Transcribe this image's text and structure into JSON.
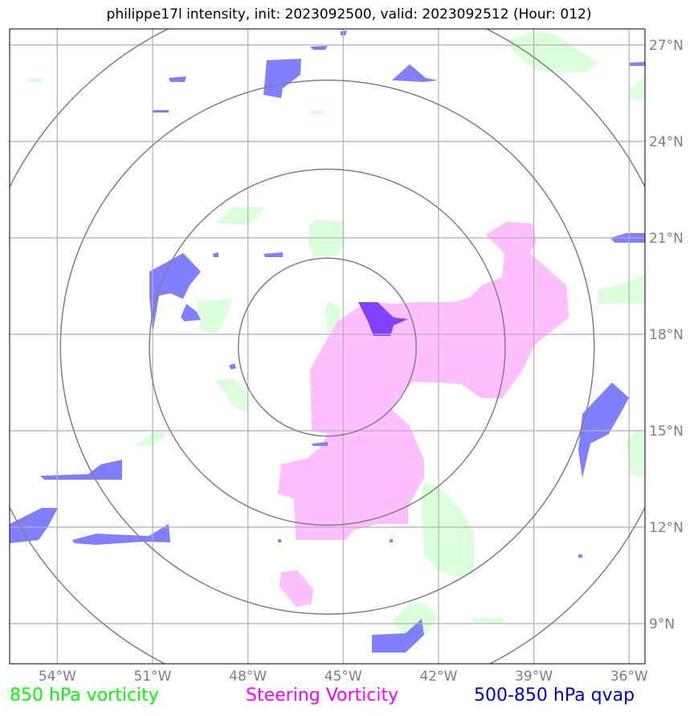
{
  "title": "philippe17l intensity, init: 2023092500, valid: 2023092512 (Hour: 012)",
  "map": {
    "lon_range": [
      -55.5,
      -35.5
    ],
    "lat_range": [
      7.75,
      27.5
    ],
    "lon_ticks": [
      {
        "value": -54,
        "label": "54°W"
      },
      {
        "value": -51,
        "label": "51°W"
      },
      {
        "value": -48,
        "label": "48°W"
      },
      {
        "value": -45,
        "label": "45°W"
      },
      {
        "value": -42,
        "label": "42°W"
      },
      {
        "value": -39,
        "label": "39°W"
      },
      {
        "value": -36,
        "label": "36°W"
      }
    ],
    "lat_ticks": [
      {
        "value": 27,
        "label": "27°N"
      },
      {
        "value": 24,
        "label": "24°N"
      },
      {
        "value": 21,
        "label": "21°N"
      },
      {
        "value": 18,
        "label": "18°N"
      },
      {
        "value": 15,
        "label": "15°N"
      },
      {
        "value": 12,
        "label": "12°N"
      },
      {
        "value": 9,
        "label": "9°N"
      }
    ],
    "storm_center": {
      "lon": -45.5,
      "lat": 17.6
    },
    "range_rings_deg": [
      2.8,
      5.6,
      8.4,
      11.2
    ]
  },
  "legend": [
    {
      "label": "850 hPa vorticity",
      "color": "#00ff00"
    },
    {
      "label": "Steering Vorticity",
      "color": "#ff00ff"
    },
    {
      "label": "500-850 hPa qvap",
      "color": "#0000cc"
    }
  ],
  "colors": {
    "vorticity_850": "#dbffdb",
    "steering_vorticity": "#ffbfff",
    "qvap": "#7f7fff",
    "overlap": "#7f40ff",
    "grid": "#b0b0b0",
    "rings": "#808080"
  }
}
